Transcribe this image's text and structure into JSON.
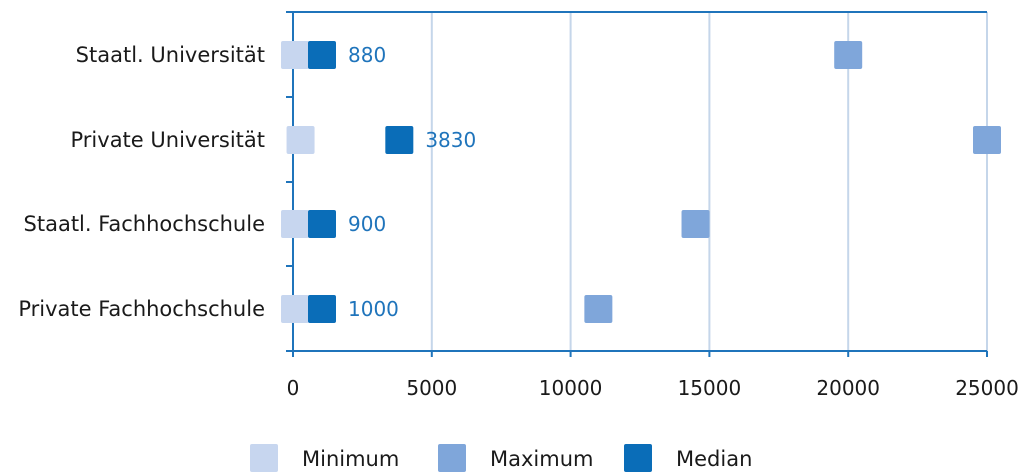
{
  "chart_data": {
    "type": "scatter",
    "orientation": "horizontal",
    "categories": [
      "Staatl. Universität",
      "Private Universität",
      "Staatl. Fachhochschule",
      "Private Fachhochschule"
    ],
    "series": [
      {
        "name": "Minimum",
        "color": "#c7d6ef",
        "values": [
          0,
          200,
          0,
          0
        ]
      },
      {
        "name": "Maximum",
        "color": "#7fa6da",
        "values": [
          20000,
          25000,
          14500,
          11000
        ]
      },
      {
        "name": "Median",
        "color": "#0a6db8",
        "values": [
          880,
          3830,
          900,
          1000
        ]
      }
    ],
    "data_labels": [
      "880",
      "3830",
      "900",
      "1000"
    ],
    "x_ticks": [
      "0",
      "5000",
      "10000",
      "15000",
      "20000",
      "25000"
    ],
    "xlim": [
      0,
      25000
    ],
    "grid": "vertical",
    "legend_position": "bottom",
    "axis_color": "#1f74bb",
    "grid_color": "#c5d6ea"
  }
}
